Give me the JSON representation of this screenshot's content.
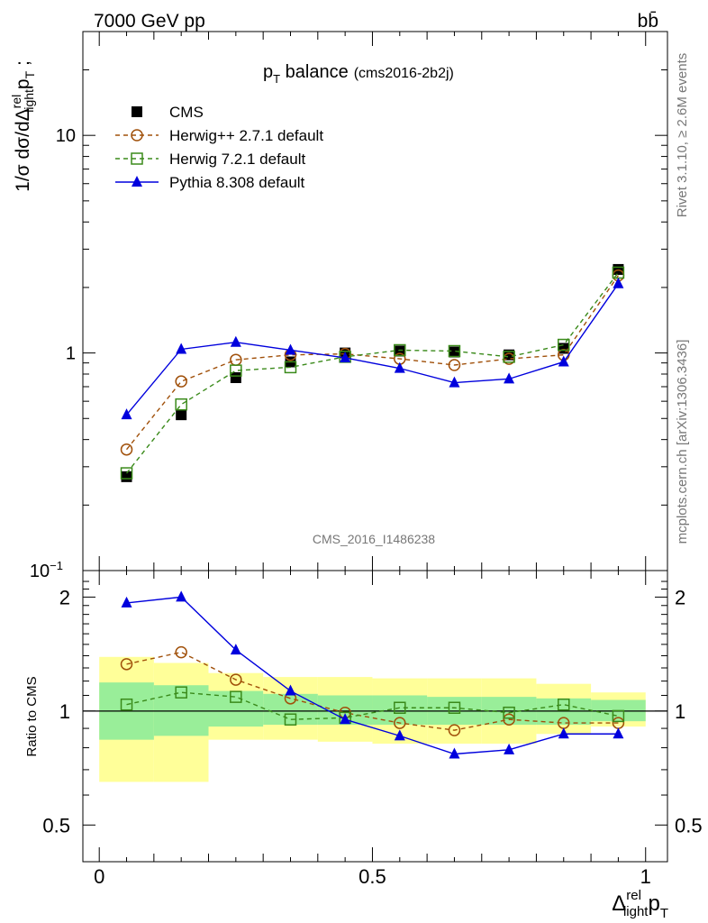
{
  "header": {
    "left": "7000 GeV pp",
    "right": "bb̄"
  },
  "side_text": {
    "right_top": "Rivet 3.1.10, ≥ 2.6M events",
    "right_bottom": "mcplots.cern.ch [arXiv:1306.3436]"
  },
  "chart_data": [
    {
      "type": "scatter",
      "title": "p_T balance",
      "title_parts": {
        "main": "p",
        "sub": "T",
        "rest": " balance",
        "small": "(cms2016-2b2j)"
      },
      "ylabel": "1/σ dσ/dΔ^rel_light p_T ;",
      "watermark": "CMS_2016_I1486238",
      "yscale": "log",
      "ylim": [
        0.1,
        30
      ],
      "xlim": [
        -0.03,
        1.04
      ],
      "y_ticks": [
        {
          "v": 0.1,
          "label": "10",
          "sup": "−1"
        },
        {
          "v": 1,
          "label": "1",
          "sup": ""
        },
        {
          "v": 10,
          "label": "10",
          "sup": ""
        }
      ],
      "x": [
        0.05,
        0.15,
        0.25,
        0.35,
        0.45,
        0.55,
        0.65,
        0.75,
        0.85,
        0.95
      ],
      "series": [
        {
          "name": "CMS",
          "color": "#000000",
          "marker": "square-filled",
          "line": "none",
          "values": [
            0.27,
            0.52,
            0.77,
            0.91,
            1.0,
            1.02,
            1.01,
            0.98,
            1.05,
            2.42
          ]
        },
        {
          "name": "Herwig++ 2.7.1 default",
          "color": "#a0500a",
          "marker": "circle-open",
          "line": "dashed",
          "values": [
            0.36,
            0.74,
            0.93,
            0.98,
            0.99,
            0.94,
            0.88,
            0.94,
            0.98,
            2.27
          ]
        },
        {
          "name": "Herwig 7.2.1 default",
          "color": "#3a8a1a",
          "marker": "square-open",
          "line": "dashed",
          "values": [
            0.28,
            0.58,
            0.83,
            0.86,
            0.96,
            1.03,
            1.02,
            0.96,
            1.09,
            2.34
          ]
        },
        {
          "name": "Pythia 8.308 default",
          "color": "#0000dd",
          "marker": "triangle-filled",
          "line": "solid",
          "values": [
            0.52,
            1.04,
            1.12,
            1.03,
            0.95,
            0.85,
            0.73,
            0.76,
            0.91,
            2.08
          ]
        }
      ],
      "legend_placement": "top-left"
    },
    {
      "type": "scatter",
      "ylabel": "Ratio to CMS",
      "yscale": "log",
      "ylim": [
        0.4,
        2.35
      ],
      "xlim": [
        -0.03,
        1.04
      ],
      "y_ticks": [
        {
          "v": 0.5,
          "label": "0.5"
        },
        {
          "v": 1,
          "label": "1"
        },
        {
          "v": 2,
          "label": "2"
        }
      ],
      "x_ticks": [
        {
          "v": 0,
          "label": "0"
        },
        {
          "v": 0.5,
          "label": "0.5"
        },
        {
          "v": 1,
          "label": "1"
        }
      ],
      "xlabel": "Δ^rel_light p_T",
      "x": [
        0.05,
        0.15,
        0.25,
        0.35,
        0.45,
        0.55,
        0.65,
        0.75,
        0.85,
        0.95
      ],
      "bin_edges": [
        0.0,
        0.1,
        0.2,
        0.3,
        0.4,
        0.5,
        0.6,
        0.7,
        0.8,
        0.9,
        1.0
      ],
      "bands": {
        "yellow_color": "#ffff99",
        "green_color": "#99ee99",
        "yellow_lo": [
          0.65,
          0.65,
          0.84,
          0.84,
          0.83,
          0.82,
          0.82,
          0.82,
          0.87,
          0.91
        ],
        "yellow_hi": [
          1.39,
          1.34,
          1.26,
          1.23,
          1.23,
          1.22,
          1.22,
          1.22,
          1.18,
          1.12
        ],
        "green_lo": [
          0.84,
          0.86,
          0.91,
          0.92,
          0.92,
          0.92,
          0.92,
          0.92,
          0.92,
          0.94
        ],
        "green_hi": [
          1.19,
          1.17,
          1.13,
          1.11,
          1.1,
          1.1,
          1.09,
          1.09,
          1.08,
          1.07
        ]
      },
      "series": [
        {
          "name": "Herwig++ 2.7.1 default",
          "color": "#a0500a",
          "marker": "circle-open",
          "line": "dashed",
          "values": [
            1.33,
            1.43,
            1.21,
            1.08,
            0.99,
            0.93,
            0.89,
            0.95,
            0.93,
            0.93
          ]
        },
        {
          "name": "Herwig 7.2.1 default",
          "color": "#3a8a1a",
          "marker": "square-open",
          "line": "dashed",
          "values": [
            1.04,
            1.12,
            1.09,
            0.95,
            0.96,
            1.02,
            1.02,
            0.99,
            1.04,
            0.97
          ]
        },
        {
          "name": "Pythia 8.308 default",
          "color": "#0000dd",
          "marker": "triangle-filled",
          "line": "solid",
          "values": [
            1.93,
            2.0,
            1.45,
            1.13,
            0.95,
            0.86,
            0.77,
            0.79,
            0.87,
            0.87
          ]
        }
      ]
    }
  ]
}
